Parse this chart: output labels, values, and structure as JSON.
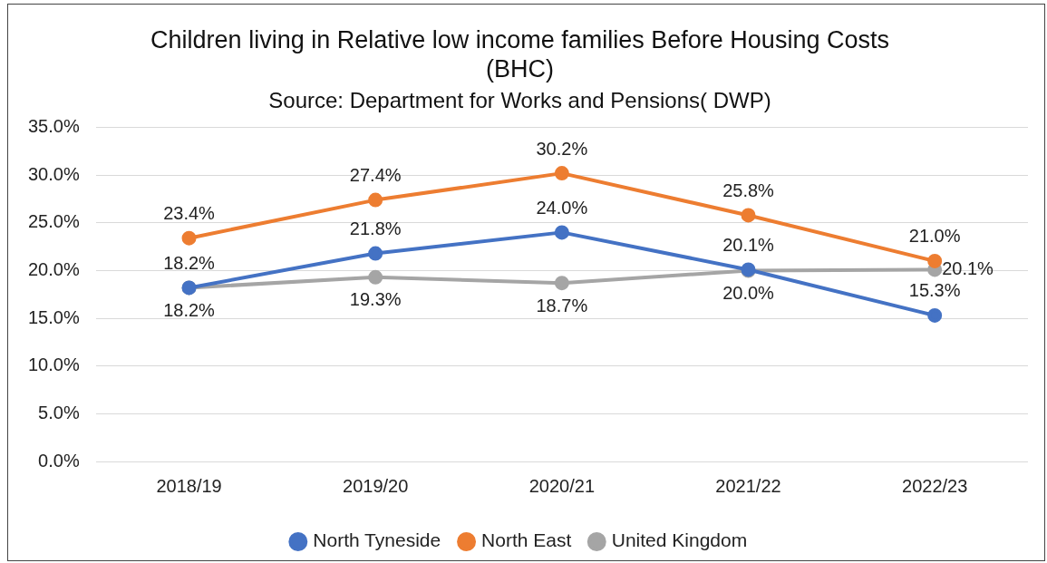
{
  "chart_data": {
    "type": "line",
    "title": "Children living in Relative low income families Before Housing Costs (BHC)",
    "subtitle": "Source: Department for Works and Pensions( DWP)",
    "categories": [
      "2018/19",
      "2019/20",
      "2020/21",
      "2021/22",
      "2022/23"
    ],
    "series": [
      {
        "name": "North Tyneside",
        "color": "#4472c4",
        "values": [
          18.2,
          21.8,
          24.0,
          20.1,
          15.3
        ],
        "value_labels": [
          "18.2%",
          "21.8%",
          "24.0%",
          "20.1%",
          "15.3%"
        ]
      },
      {
        "name": "North East",
        "color": "#ed7d31",
        "values": [
          23.4,
          27.4,
          30.2,
          25.8,
          21.0
        ],
        "value_labels": [
          "23.4%",
          "27.4%",
          "30.2%",
          "25.8%",
          "21.0%"
        ]
      },
      {
        "name": "United Kingdom",
        "color": "#a5a5a5",
        "values": [
          18.2,
          19.3,
          18.7,
          20.0,
          20.1
        ],
        "value_labels": [
          "18.2%",
          "19.3%",
          "18.7%",
          "20.0%",
          "20.1%"
        ]
      }
    ],
    "ylim": [
      0,
      35
    ],
    "yticks": [
      {
        "value": 0,
        "label": "0.0%"
      },
      {
        "value": 5,
        "label": "5.0%"
      },
      {
        "value": 10,
        "label": "10.0%"
      },
      {
        "value": 15,
        "label": "15.0%"
      },
      {
        "value": 20,
        "label": "20.0%"
      },
      {
        "value": 25,
        "label": "25.0%"
      },
      {
        "value": 30,
        "label": "30.0%"
      },
      {
        "value": 35,
        "label": "35.0%"
      }
    ],
    "grid": "y",
    "legend": "bottom",
    "marker": "circle",
    "line_style": "solid"
  }
}
